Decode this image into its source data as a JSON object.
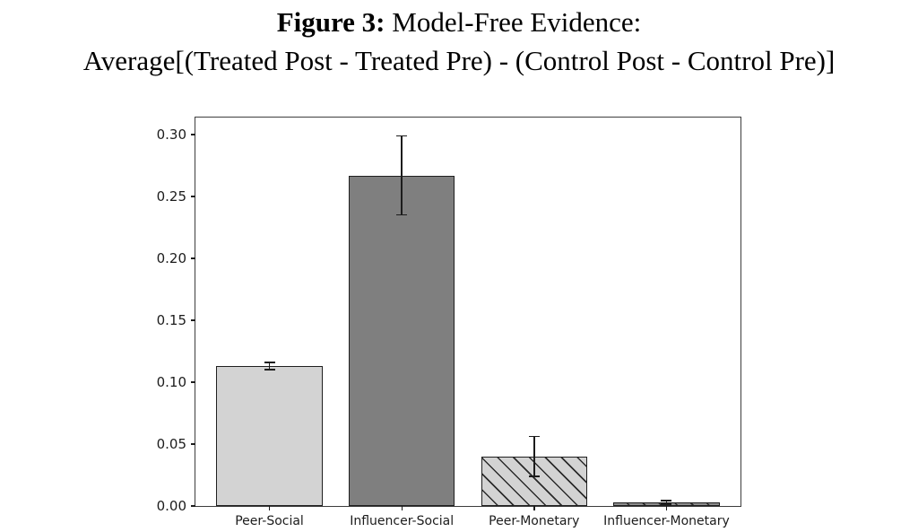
{
  "figure": {
    "title_prefix": "Figure 3:",
    "title_rest": " Model-Free Evidence:",
    "title_line2": "Average[(Treated Post - Treated Pre) - (Control Post - Control Pre)]"
  },
  "chart_data": {
    "type": "bar",
    "title": "Figure 3: Model-Free Evidence: Average[(Treated Post - Treated Pre) - (Control Post - Control Pre)]",
    "categories": [
      "Peer-Social",
      "Influencer-Social",
      "Peer-Monetary",
      "Influencer-Monetary"
    ],
    "values": [
      0.113,
      0.267,
      0.04,
      0.003
    ],
    "errors": [
      0.003,
      0.032,
      0.016,
      0.0015
    ],
    "bar_styles": [
      {
        "fill": "#d3d3d3",
        "hatch": false
      },
      {
        "fill": "#7f7f7f",
        "hatch": false
      },
      {
        "fill": "#d3d3d3",
        "hatch": true
      },
      {
        "fill": "#8c8c8c",
        "hatch": true
      }
    ],
    "xlabel": "",
    "ylabel": "",
    "ylim": [
      0,
      0.3138
    ],
    "yticks": [
      "0.00",
      "0.05",
      "0.10",
      "0.15",
      "0.20",
      "0.25",
      "0.30"
    ],
    "grid": false,
    "legend_position": "none",
    "edge_color": "#1f1f1f",
    "axis_color": "#1c1c1c",
    "error_bar_color": "#1c1c1c"
  }
}
